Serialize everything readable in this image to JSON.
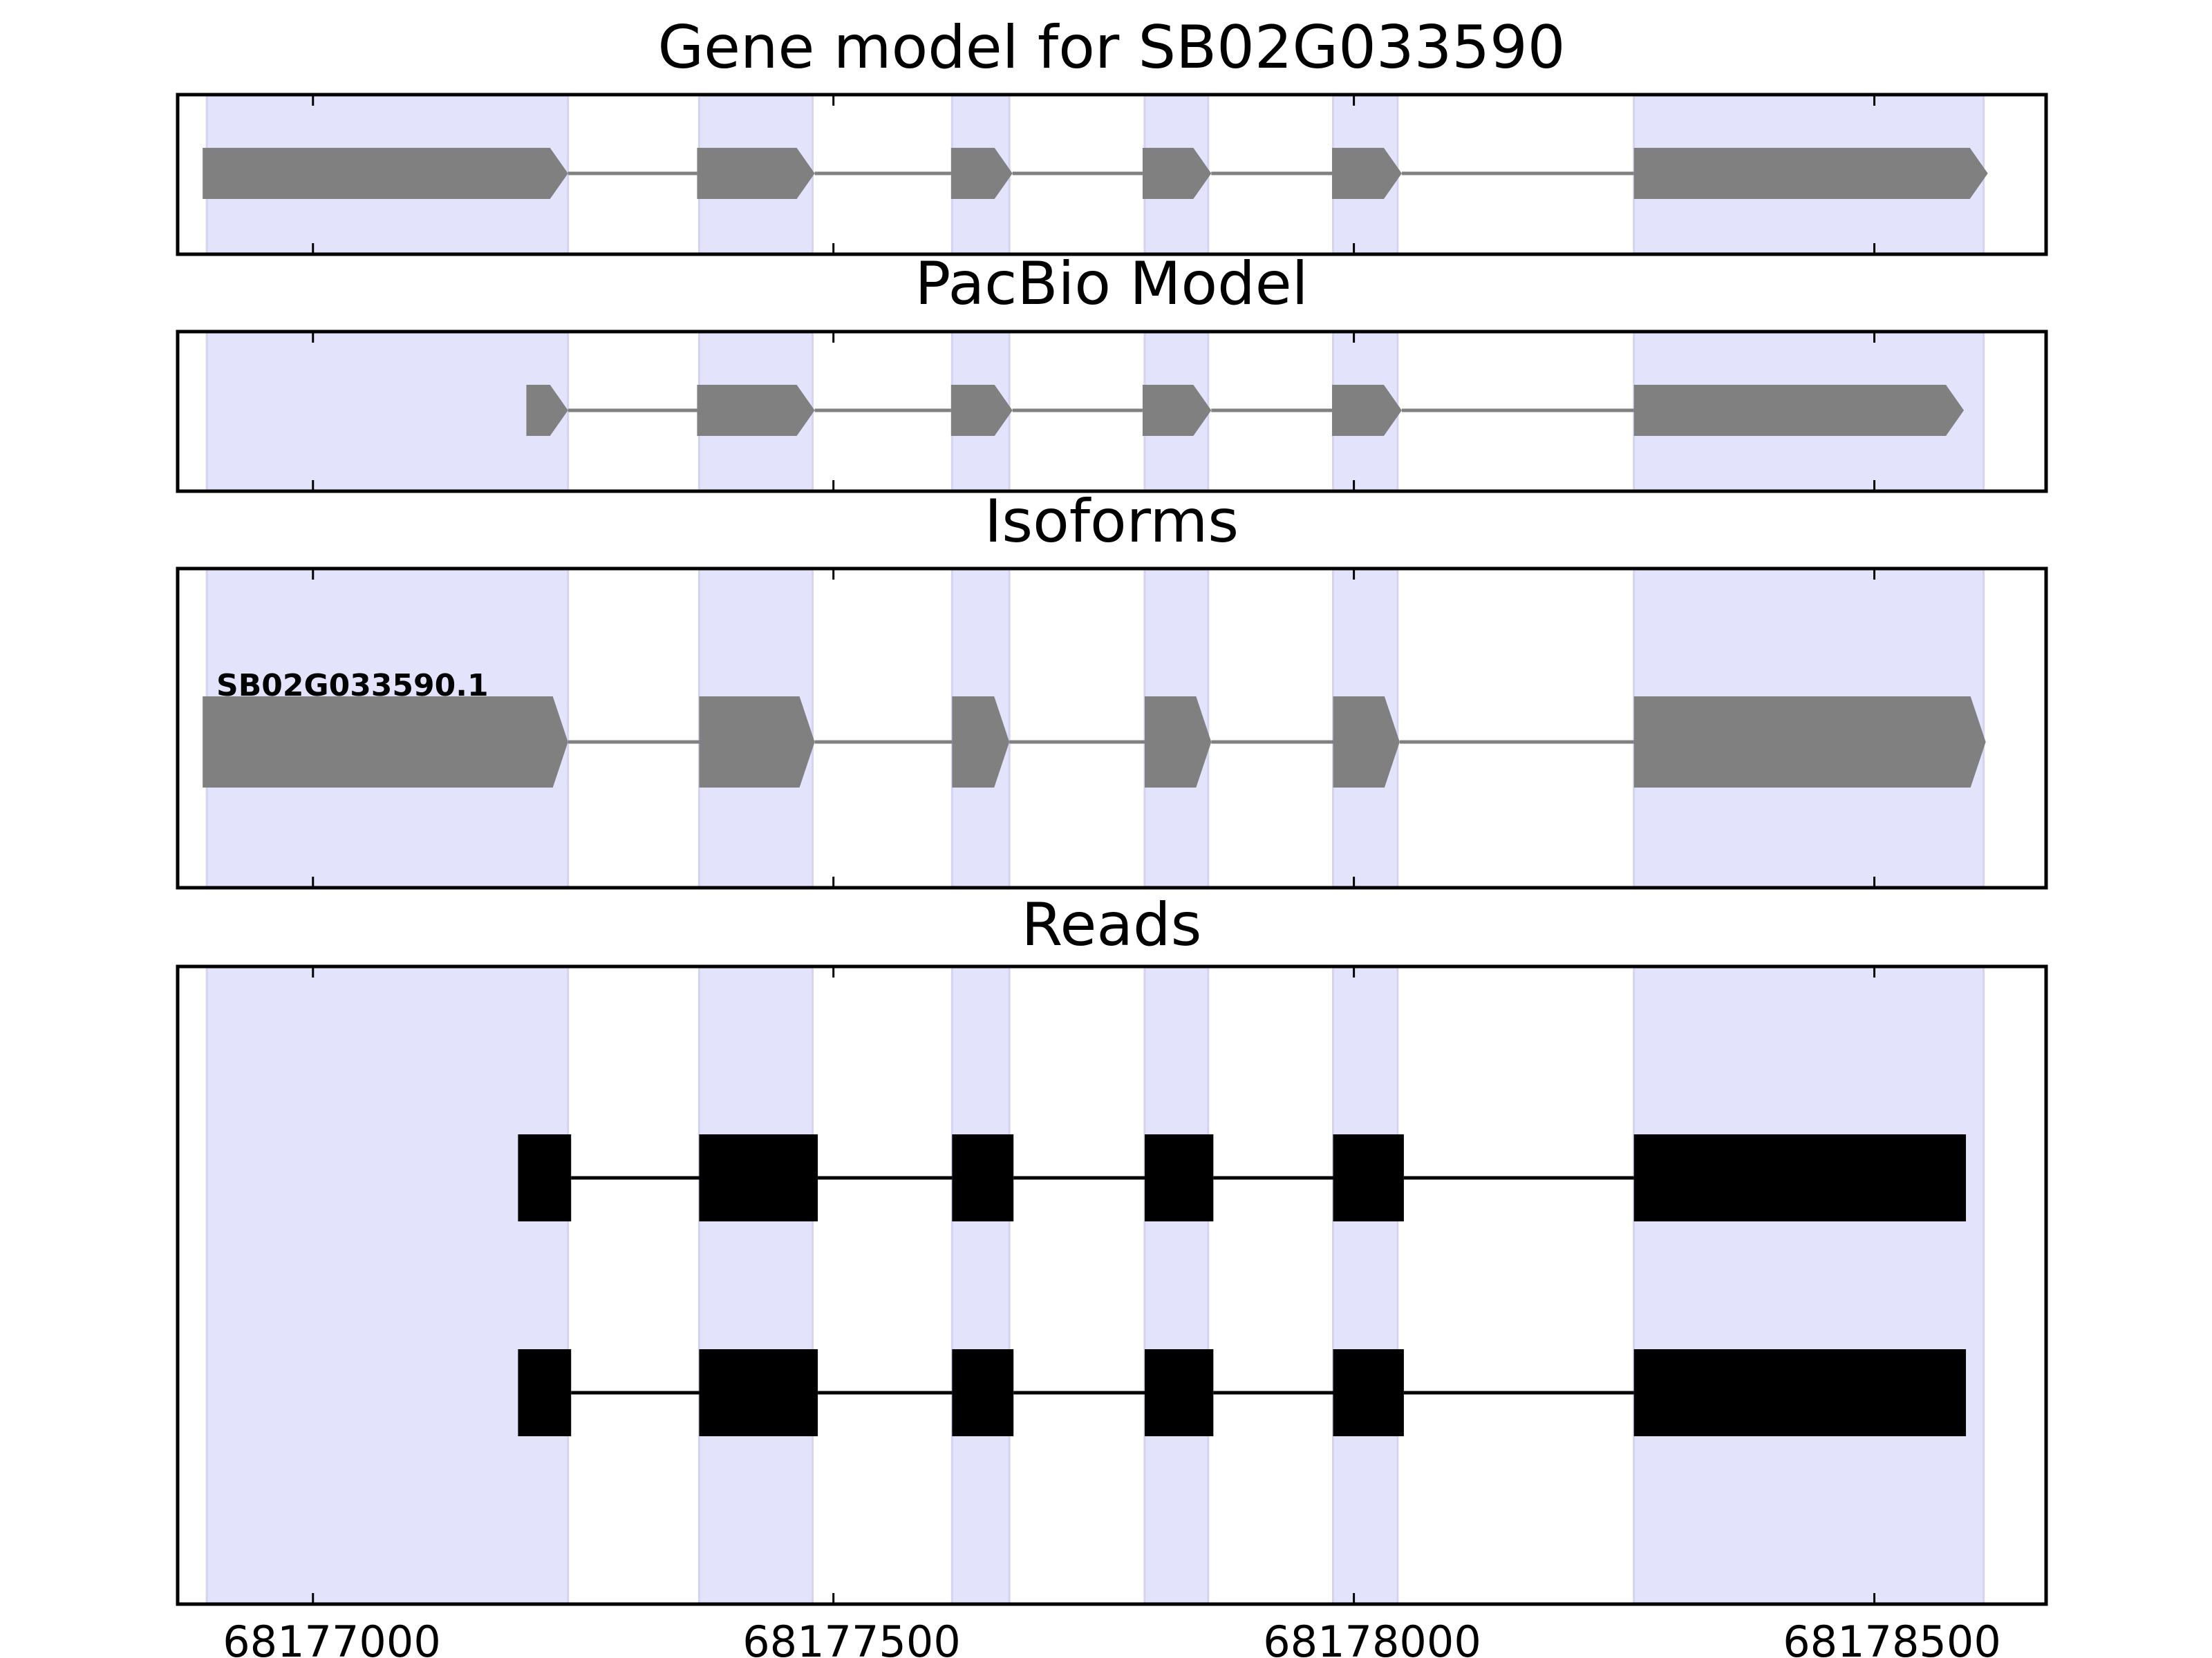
{
  "figure": {
    "background": "#ffffff"
  },
  "colors": {
    "exon_band": "#e3e3fb",
    "feature_fill": "#808080",
    "intron_line": "#808080",
    "read_fill": "#000000",
    "frame": "#000000"
  },
  "chart_data": [
    {
      "type": "gene-model",
      "title": "Gene model for SB02G033590",
      "xlim": [
        68176870,
        68178665
      ],
      "exon_bands": [
        [
          68176898,
          68177245
        ],
        [
          68177371,
          68177480
        ],
        [
          68177614,
          68177669
        ],
        [
          68177799,
          68177860
        ],
        [
          68177980,
          68178042
        ],
        [
          68178269,
          68178605
        ]
      ],
      "features": [
        {
          "label": "",
          "exons": [
            [
              68176894,
              68177245
            ],
            [
              68177369,
              68177482
            ],
            [
              68177613,
              68177672
            ],
            [
              68177797,
              68177863
            ],
            [
              68177979,
              68178046
            ],
            [
              68178269,
              68178609
            ]
          ]
        }
      ]
    },
    {
      "type": "gene-model",
      "title": "PacBio Model",
      "xlim": [
        68176870,
        68178665
      ],
      "exon_bands": [
        [
          68176898,
          68177245
        ],
        [
          68177371,
          68177480
        ],
        [
          68177614,
          68177669
        ],
        [
          68177799,
          68177860
        ],
        [
          68177980,
          68178042
        ],
        [
          68178269,
          68178605
        ]
      ],
      "features": [
        {
          "label": "",
          "exons": [
            [
              68177205,
              68177245
            ],
            [
              68177369,
              68177482
            ],
            [
              68177613,
              68177672
            ],
            [
              68177797,
              68177863
            ],
            [
              68177979,
              68178046
            ],
            [
              68178269,
              68178586
            ]
          ]
        }
      ]
    },
    {
      "type": "gene-model",
      "title": "Isoforms",
      "xlim": [
        68176870,
        68178665
      ],
      "exon_bands": [
        [
          68176898,
          68177245
        ],
        [
          68177371,
          68177480
        ],
        [
          68177614,
          68177669
        ],
        [
          68177799,
          68177860
        ],
        [
          68177980,
          68178042
        ],
        [
          68178269,
          68178605
        ]
      ],
      "features": [
        {
          "label": "SB02G033590.1",
          "exons": [
            [
              68176894,
              68177245
            ],
            [
              68177371,
              68177482
            ],
            [
              68177614,
              68177669
            ],
            [
              68177799,
              68177863
            ],
            [
              68177980,
              68178044
            ],
            [
              68178269,
              68178607
            ]
          ]
        }
      ]
    },
    {
      "type": "reads",
      "title": "Reads",
      "xlim": [
        68176870,
        68178665
      ],
      "xticks": [
        68177000,
        68177500,
        68178000,
        68178500
      ],
      "xtick_labels": [
        "68177000",
        "68177500",
        "68178000",
        "68178500"
      ],
      "exon_bands": [
        [
          68176898,
          68177245
        ],
        [
          68177371,
          68177480
        ],
        [
          68177614,
          68177669
        ],
        [
          68177799,
          68177860
        ],
        [
          68177980,
          68178042
        ],
        [
          68178269,
          68178605
        ]
      ],
      "reads": [
        {
          "exons": [
            [
              68177197,
              68177248
            ],
            [
              68177371,
              68177485
            ],
            [
              68177614,
              68177673
            ],
            [
              68177799,
              68177865
            ],
            [
              68177980,
              68178048
            ],
            [
              68178269,
              68178588
            ]
          ]
        },
        {
          "exons": [
            [
              68177197,
              68177248
            ],
            [
              68177371,
              68177485
            ],
            [
              68177614,
              68177673
            ],
            [
              68177799,
              68177865
            ],
            [
              68177980,
              68178048
            ],
            [
              68178269,
              68178588
            ]
          ]
        }
      ]
    }
  ]
}
